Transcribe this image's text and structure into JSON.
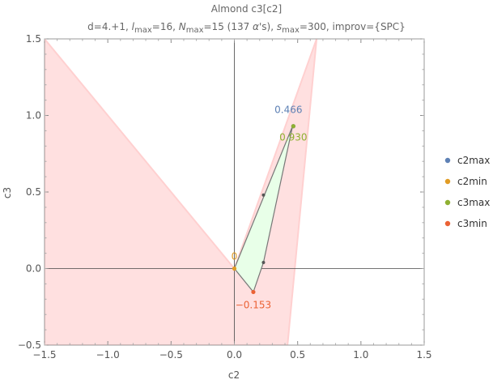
{
  "chart_data": {
    "type": "scatter",
    "title": "Almond c3[c2]",
    "subtitle_parts": {
      "d": "d=4.+1, ",
      "l_sym": "l",
      "l_sub": "max",
      "l_val": "=16, ",
      "n_sym": "N",
      "n_sub": "max",
      "n_val": "=15 (137 ",
      "alpha": "α",
      "n_tail": "'s), ",
      "s_sym": "s",
      "s_sub": "max",
      "s_val": "=300, improv={SPC}"
    },
    "xlabel": "c2",
    "ylabel": "c3",
    "xlim": [
      -1.5,
      1.5
    ],
    "ylim": [
      -0.5,
      1.5
    ],
    "xticks": [
      -1.5,
      -1.0,
      -0.5,
      0.0,
      0.5,
      1.0,
      1.5
    ],
    "xtick_labels": [
      "−1.5",
      "−1.0",
      "−0.5",
      "0.0",
      "0.5",
      "1.0",
      "1.5"
    ],
    "yticks": [
      -0.5,
      0.0,
      0.5,
      1.0,
      1.5
    ],
    "ytick_labels": [
      "−0.5",
      "0.0",
      "0.5",
      "1.0",
      "1.5"
    ],
    "excluded_region_color": "#ffe0e0",
    "excluded_boundary": [
      [
        0.0,
        0.0
      ],
      [
        0.65,
        1.5
      ],
      [
        0.42,
        -0.5
      ],
      [
        -1.5,
        -0.5
      ],
      [
        -1.5,
        1.5
      ]
    ],
    "allowed_polygon": {
      "fill": "#e8ffe8",
      "stroke": "#777777",
      "vertices": [
        [
          0.0,
          0.0
        ],
        [
          0.46,
          0.93
        ],
        [
          0.23,
          0.04
        ],
        [
          0.15,
          -0.153
        ]
      ]
    },
    "inner_points": [
      [
        0.23,
        0.48
      ],
      [
        0.23,
        0.04
      ]
    ],
    "series": [
      {
        "name": "c2max",
        "color": "#5e81b5",
        "point": [
          0.466,
          0.93
        ],
        "label": "0.466"
      },
      {
        "name": "c2min",
        "color": "#e19c24",
        "point": [
          0.0,
          0.0
        ],
        "label": "0"
      },
      {
        "name": "c3max",
        "color": "#8fb032",
        "point": [
          0.466,
          0.93
        ],
        "label": "0.930"
      },
      {
        "name": "c3min",
        "color": "#eb6235",
        "point": [
          0.15,
          -0.153
        ],
        "label": "−0.153"
      }
    ],
    "grid": false,
    "legend_position": "right"
  }
}
